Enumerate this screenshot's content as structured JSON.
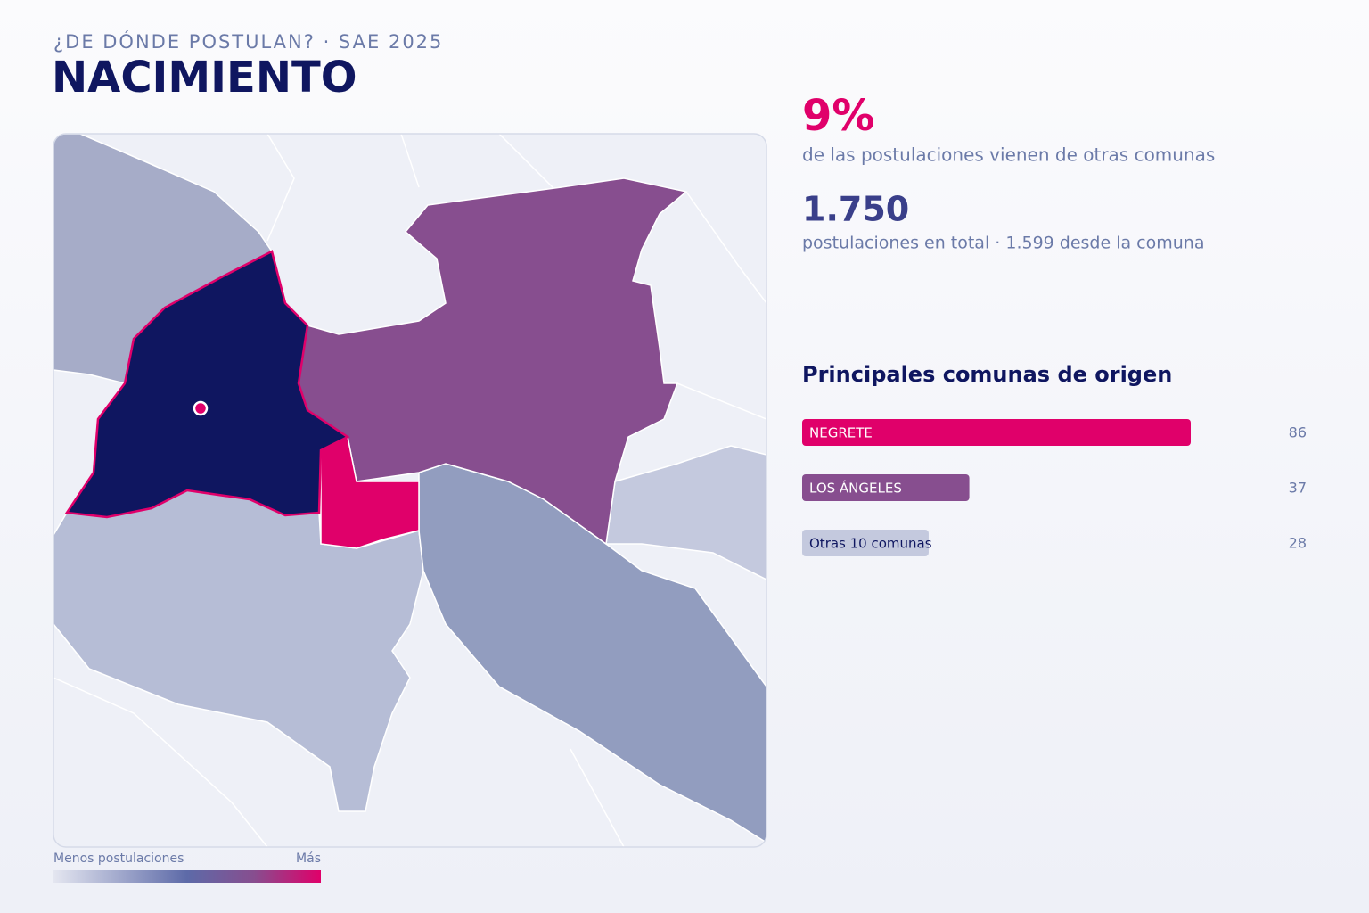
{
  "header": {
    "subtitle": "¿DE DÓNDE POSTULAN? · SAE 2025",
    "title": "NACIMIENTO"
  },
  "stats": {
    "share": "9%",
    "share_text": "de las postulaciones vienen de otras comunas",
    "total": "1.750",
    "total_text": "postulaciones en total · 1.599 desde la comuna"
  },
  "legend": {
    "low": "Menos postulaciones",
    "high": "Más"
  },
  "chart_data": {
    "type": "bar",
    "orientation": "horizontal",
    "title": "Principales comunas de origen",
    "categories": [
      "NEGRETE",
      "LOS ÁNGELES",
      "Otras 10 comunas"
    ],
    "values": [
      86,
      37,
      28
    ],
    "colors": [
      "#e0006a",
      "#874e8f",
      "#c4c9de"
    ],
    "xlim": [
      0,
      86
    ]
  }
}
